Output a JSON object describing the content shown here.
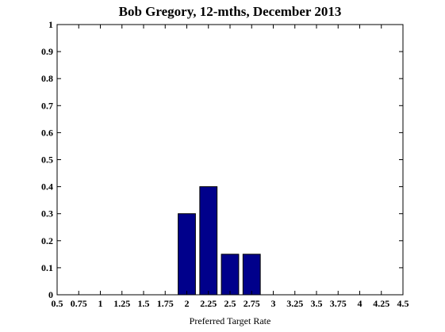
{
  "chart_data": {
    "type": "bar",
    "title": "Bob Gregory, 12-mths, December 2013",
    "xlabel": "Preferred Target Rate",
    "ylabel": "",
    "xlim": [
      0.5,
      4.5
    ],
    "ylim": [
      0,
      1
    ],
    "x_ticks": [
      "0.5",
      "0.75",
      "1",
      "1.25",
      "1.5",
      "1.75",
      "2",
      "2.25",
      "2.5",
      "2.75",
      "3",
      "3.25",
      "3.5",
      "3.75",
      "4",
      "4.25",
      "4.5"
    ],
    "y_ticks": [
      "0",
      "0.1",
      "0.2",
      "0.3",
      "0.4",
      "0.5",
      "0.6",
      "0.7",
      "0.8",
      "0.9",
      "1"
    ],
    "bar_color": "#00008B",
    "grid": false,
    "legend": "none",
    "x": [
      2.0,
      2.25,
      2.5,
      2.75
    ],
    "values": [
      0.3,
      0.4,
      0.15,
      0.15
    ]
  }
}
